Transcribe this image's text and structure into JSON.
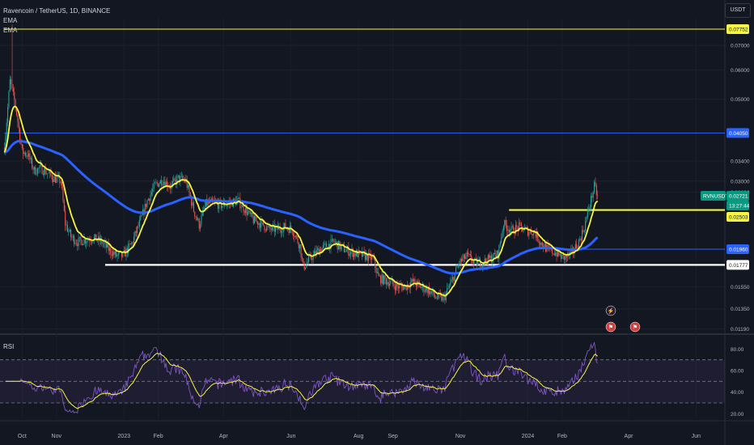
{
  "header": {
    "title": "Ravencoin / TetherUS, 1D, BINANCE",
    "indicator_1": "EMA",
    "indicator_2": "EMA",
    "currency_button": "USDT"
  },
  "rsi_panel": {
    "label": "RSI"
  },
  "chart_data": [
    {
      "type": "candlestick",
      "title": "Ravencoin / TetherUS, 1D, BINANCE",
      "y_scale": "log",
      "y_ticks": [
        "0.07000",
        "0.06000",
        "0.05000",
        "0.03400",
        "0.03000",
        "0.02800",
        "0.01550",
        "0.01350",
        "0.01190"
      ],
      "x_ticks": [
        "Oct",
        "Nov",
        "2023",
        "Feb",
        "Apr",
        "Jun",
        "Aug",
        "Sep",
        "Nov",
        "2024",
        "Feb",
        "Apr",
        "Jun"
      ],
      "price_labels": [
        {
          "text": "0.07752",
          "color": "#f5f542",
          "value": 0.07752
        },
        {
          "text": "0.04050",
          "color": "#2962ff",
          "value": 0.0405
        },
        {
          "text": "RVNUSDT",
          "color": "#089981",
          "value": 0.02721
        },
        {
          "text": "0.02721",
          "color": "#089981",
          "value": 0.02721
        },
        {
          "text": "13:27:44",
          "color": "#089981",
          "value": 0.02721
        },
        {
          "text": "0.02503",
          "color": "#f5f542",
          "value": 0.02503
        },
        {
          "text": "0.01960",
          "color": "#2962ff",
          "value": 0.0196
        },
        {
          "text": "0.01777",
          "color": "#ffffff",
          "value": 0.01777
        }
      ],
      "horizontal_lines": [
        {
          "value": 0.07752,
          "color": "#f5f542",
          "from": "Sep 2022",
          "to": "Jun 2024"
        },
        {
          "value": 0.0405,
          "color": "#2962ff",
          "from": "Sep 2022",
          "to": "Jun 2024"
        },
        {
          "value": 0.02503,
          "color": "#f5f542",
          "from": "Dec 2023",
          "to": "Jun 2024"
        },
        {
          "value": 0.0196,
          "color": "#2962ff",
          "from": "Feb 2024",
          "to": "Jun 2024"
        },
        {
          "value": 0.01777,
          "color": "#ffffff",
          "from": "Dec 2022",
          "to": "Jun 2024"
        }
      ],
      "close_series": [
        [
          "2022-09-15",
          0.037
        ],
        [
          "2022-09-20",
          0.056
        ],
        [
          "2022-09-25",
          0.048
        ],
        [
          "2022-10-01",
          0.036
        ],
        [
          "2022-10-06",
          0.0355
        ],
        [
          "2022-10-12",
          0.032
        ],
        [
          "2022-10-18",
          0.0325
        ],
        [
          "2022-10-24",
          0.0315
        ],
        [
          "2022-10-30",
          0.0305
        ],
        [
          "2022-11-05",
          0.03
        ],
        [
          "2022-11-09",
          0.023
        ],
        [
          "2022-11-14",
          0.0212
        ],
        [
          "2022-11-20",
          0.0205
        ],
        [
          "2022-11-27",
          0.0208
        ],
        [
          "2022-12-04",
          0.021
        ],
        [
          "2022-12-11",
          0.0206
        ],
        [
          "2022-12-18",
          0.0196
        ],
        [
          "2022-12-25",
          0.0188
        ],
        [
          "2022-12-31",
          0.0188
        ],
        [
          "2023-01-08",
          0.0203
        ],
        [
          "2023-01-15",
          0.023
        ],
        [
          "2023-01-22",
          0.0265
        ],
        [
          "2023-01-29",
          0.0292
        ],
        [
          "2023-02-05",
          0.0302
        ],
        [
          "2023-02-12",
          0.029
        ],
        [
          "2023-02-19",
          0.0305
        ],
        [
          "2023-02-26",
          0.03
        ],
        [
          "2023-03-05",
          0.025
        ],
        [
          "2023-03-10",
          0.0228
        ],
        [
          "2023-03-16",
          0.026
        ],
        [
          "2023-03-23",
          0.0262
        ],
        [
          "2023-03-30",
          0.0258
        ],
        [
          "2023-04-07",
          0.0262
        ],
        [
          "2023-04-14",
          0.0265
        ],
        [
          "2023-04-21",
          0.025
        ],
        [
          "2023-04-28",
          0.0235
        ],
        [
          "2023-05-05",
          0.023
        ],
        [
          "2023-05-12",
          0.0222
        ],
        [
          "2023-05-19",
          0.0222
        ],
        [
          "2023-05-26",
          0.0225
        ],
        [
          "2023-06-02",
          0.0222
        ],
        [
          "2023-06-09",
          0.02
        ],
        [
          "2023-06-12",
          0.0175
        ],
        [
          "2023-06-19",
          0.0186
        ],
        [
          "2023-06-26",
          0.0195
        ],
        [
          "2023-07-03",
          0.02
        ],
        [
          "2023-07-10",
          0.0205
        ],
        [
          "2023-07-17",
          0.0197
        ],
        [
          "2023-07-24",
          0.0193
        ],
        [
          "2023-07-31",
          0.019
        ],
        [
          "2023-08-07",
          0.0188
        ],
        [
          "2023-08-14",
          0.0184
        ],
        [
          "2023-08-19",
          0.0164
        ],
        [
          "2023-08-28",
          0.016
        ],
        [
          "2023-09-05",
          0.0155
        ],
        [
          "2023-09-12",
          0.0155
        ],
        [
          "2023-09-19",
          0.016
        ],
        [
          "2023-09-26",
          0.0155
        ],
        [
          "2023-10-03",
          0.0152
        ],
        [
          "2023-10-10",
          0.0145
        ],
        [
          "2023-10-17",
          0.0144
        ],
        [
          "2023-10-24",
          0.016
        ],
        [
          "2023-10-31",
          0.018
        ],
        [
          "2023-11-07",
          0.0188
        ],
        [
          "2023-11-14",
          0.018
        ],
        [
          "2023-11-21",
          0.018
        ],
        [
          "2023-11-28",
          0.0185
        ],
        [
          "2023-12-05",
          0.019
        ],
        [
          "2023-12-10",
          0.023
        ],
        [
          "2023-12-17",
          0.022
        ],
        [
          "2023-12-24",
          0.0225
        ],
        [
          "2023-12-31",
          0.022
        ],
        [
          "2024-01-07",
          0.0218
        ],
        [
          "2024-01-12",
          0.0205
        ],
        [
          "2024-01-19",
          0.0195
        ],
        [
          "2024-01-26",
          0.0192
        ],
        [
          "2024-02-02",
          0.0185
        ],
        [
          "2024-02-09",
          0.019
        ],
        [
          "2024-02-16",
          0.0205
        ],
        [
          "2024-02-21",
          0.0225
        ],
        [
          "2024-02-26",
          0.026
        ],
        [
          "2024-03-01",
          0.029
        ],
        [
          "2024-03-04",
          0.0272
        ]
      ],
      "series": [
        {
          "name": "EMA",
          "color": "#f5f542",
          "role": "fast EMA"
        },
        {
          "name": "EMA",
          "color": "#2962ff",
          "role": "slow EMA"
        }
      ]
    },
    {
      "type": "line",
      "title": "RSI",
      "y_ticks": [
        "80.00",
        "60.00",
        "40.00",
        "20.00"
      ],
      "bands": [
        70,
        50,
        30
      ],
      "ylim": [
        15,
        90
      ],
      "series": [
        {
          "name": "RSI",
          "color": "#7e57c2"
        },
        {
          "name": "RSI-based MA",
          "color": "#f5f542"
        }
      ]
    }
  ]
}
